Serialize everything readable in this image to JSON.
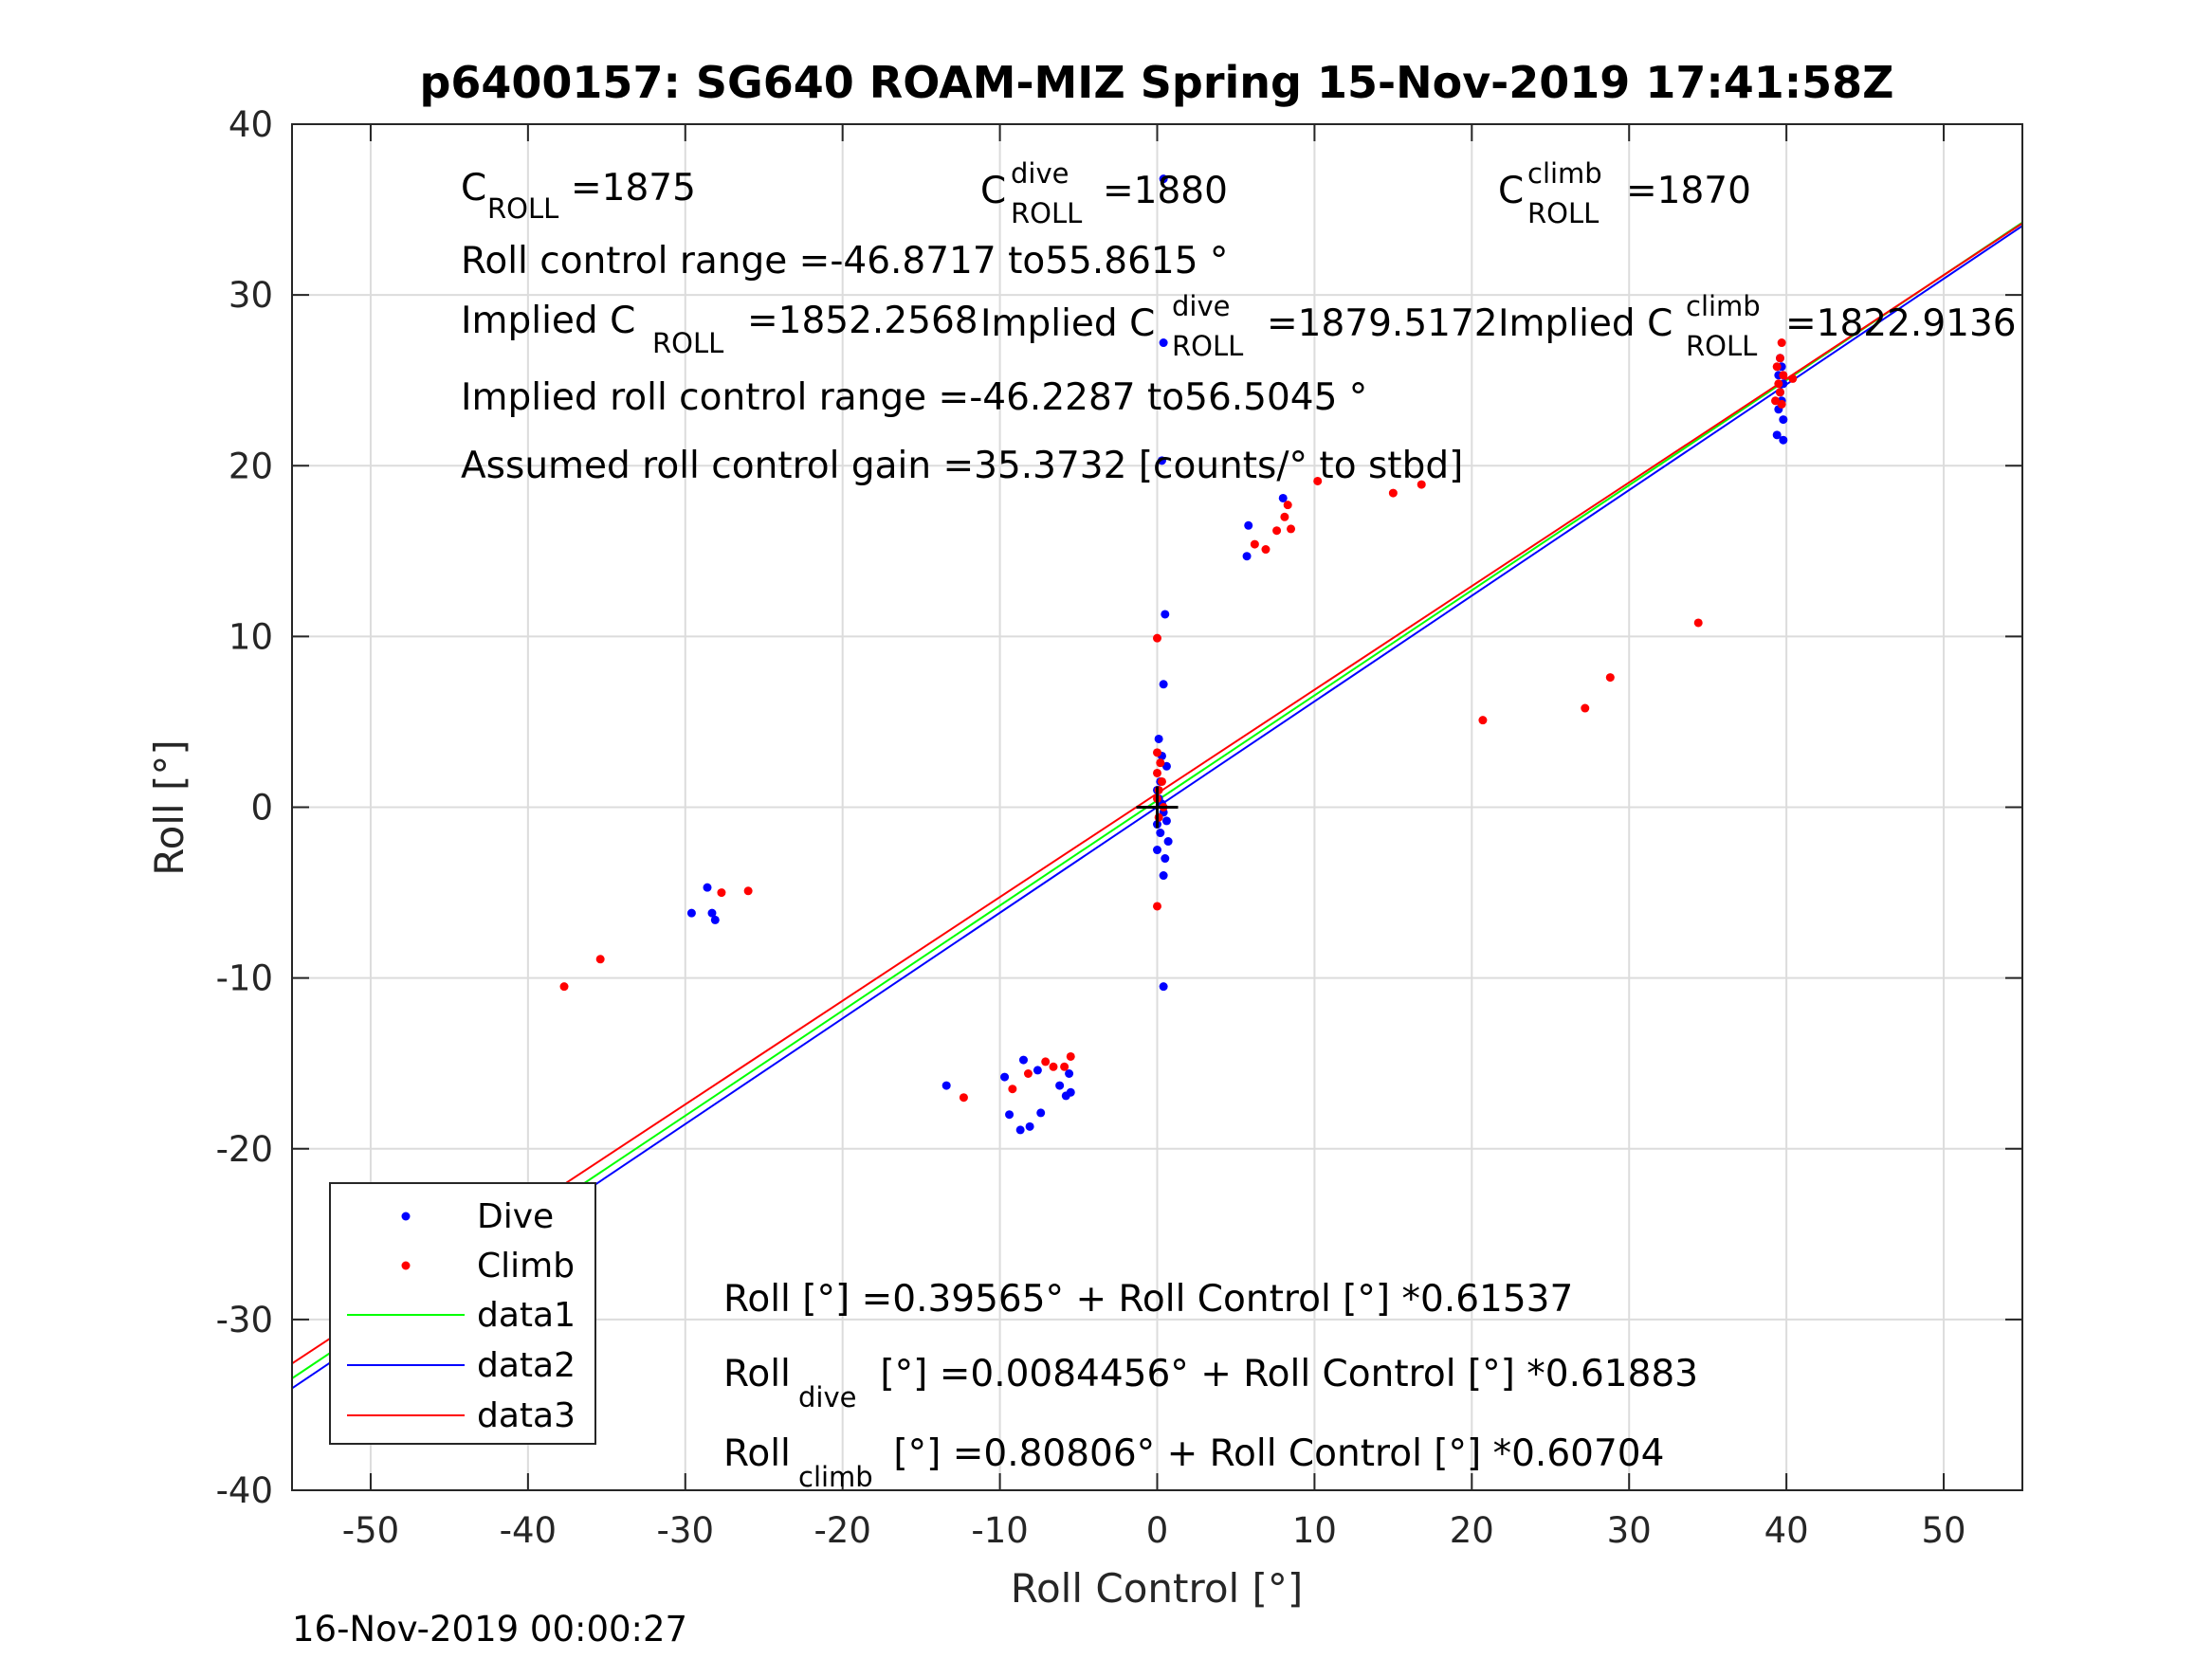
{
  "chart_data": {
    "type": "scatter",
    "title": "p6400157: SG640 ROAM-MIZ Spring 15-Nov-2019 17:41:58Z",
    "xlabel": "Roll Control [°]",
    "ylabel": "Roll [°]",
    "xlim": [
      -55,
      55
    ],
    "ylim": [
      -40,
      40
    ],
    "xticks": [
      -50,
      -40,
      -30,
      -20,
      -10,
      0,
      10,
      20,
      30,
      40,
      50
    ],
    "yticks": [
      -40,
      -30,
      -20,
      -10,
      0,
      10,
      20,
      30,
      40
    ],
    "grid": true,
    "legend_position": "bottom-left",
    "series": [
      {
        "name": "Dive",
        "kind": "points",
        "color": "#0000ff",
        "points": [
          [
            -39.6,
            -22.8
          ],
          [
            -39.8,
            -23.4
          ],
          [
            -39.4,
            -24.0
          ],
          [
            -39.7,
            -24.6
          ],
          [
            -39.5,
            -25.0
          ],
          [
            -39.9,
            -25.4
          ],
          [
            -39.3,
            -25.8
          ],
          [
            -39.6,
            -26.0
          ],
          [
            -39.8,
            -25.6
          ],
          [
            -39.4,
            -24.8
          ],
          [
            -29.6,
            -6.2
          ],
          [
            -28.6,
            -4.7
          ],
          [
            -28.3,
            -6.2
          ],
          [
            -28.1,
            -6.6
          ],
          [
            -13.4,
            -16.3
          ],
          [
            -9.7,
            -15.8
          ],
          [
            -9.4,
            -18.0
          ],
          [
            -8.7,
            -18.9
          ],
          [
            -8.5,
            -14.8
          ],
          [
            -8.1,
            -18.7
          ],
          [
            -7.6,
            -15.4
          ],
          [
            -7.4,
            -17.9
          ],
          [
            -6.2,
            -16.3
          ],
          [
            -5.8,
            -16.9
          ],
          [
            -5.6,
            -15.6
          ],
          [
            -5.5,
            -16.7
          ],
          [
            0.4,
            36.8
          ],
          [
            0.4,
            27.2
          ],
          [
            0.3,
            20.3
          ],
          [
            0.5,
            11.3
          ],
          [
            0.4,
            7.2
          ],
          [
            0.1,
            4.0
          ],
          [
            0.3,
            3.0
          ],
          [
            0.6,
            2.4
          ],
          [
            0.2,
            1.5
          ],
          [
            0.0,
            1.0
          ],
          [
            0.1,
            0.5
          ],
          [
            0.3,
            0.2
          ],
          [
            0.4,
            -0.3
          ],
          [
            0.6,
            -0.8
          ],
          [
            0.0,
            -1.0
          ],
          [
            0.2,
            -1.5
          ],
          [
            0.7,
            -2.0
          ],
          [
            0.0,
            -2.5
          ],
          [
            0.5,
            -3.0
          ],
          [
            0.4,
            -4.0
          ],
          [
            0.4,
            -10.5
          ],
          [
            5.7,
            14.7
          ],
          [
            5.8,
            16.5
          ],
          [
            8.0,
            18.1
          ],
          [
            39.6,
            26.3
          ],
          [
            39.7,
            25.8
          ],
          [
            39.5,
            25.3
          ],
          [
            39.8,
            24.8
          ],
          [
            39.6,
            24.3
          ],
          [
            39.7,
            23.8
          ],
          [
            39.5,
            23.3
          ],
          [
            39.8,
            22.7
          ],
          [
            39.4,
            21.8
          ],
          [
            39.8,
            21.5
          ]
        ]
      },
      {
        "name": "Climb",
        "kind": "points",
        "color": "#ff0000",
        "points": [
          [
            -40.3,
            -25.6
          ],
          [
            -40.0,
            -25.0
          ],
          [
            -39.8,
            -24.4
          ],
          [
            -39.5,
            -24.0
          ],
          [
            -39.9,
            -23.6
          ],
          [
            -39.4,
            -23.3
          ],
          [
            -40.2,
            -24.7
          ],
          [
            -39.7,
            -25.3
          ],
          [
            -39.6,
            -23.8
          ],
          [
            -37.7,
            -10.5
          ],
          [
            -35.4,
            -8.9
          ],
          [
            -27.7,
            -5.0
          ],
          [
            -26.0,
            -4.9
          ],
          [
            -12.3,
            -17.0
          ],
          [
            -9.2,
            -16.5
          ],
          [
            -8.2,
            -15.6
          ],
          [
            -7.1,
            -14.9
          ],
          [
            -6.6,
            -15.2
          ],
          [
            -5.9,
            -15.2
          ],
          [
            -5.5,
            -14.6
          ],
          [
            0.0,
            9.9
          ],
          [
            0.0,
            3.2
          ],
          [
            0.2,
            2.6
          ],
          [
            0.0,
            2.0
          ],
          [
            0.3,
            1.5
          ],
          [
            0.1,
            1.0
          ],
          [
            0.0,
            0.5
          ],
          [
            0.4,
            0.0
          ],
          [
            0.1,
            -0.6
          ],
          [
            0.0,
            -5.8
          ],
          [
            6.2,
            15.4
          ],
          [
            6.9,
            15.1
          ],
          [
            7.6,
            16.2
          ],
          [
            8.1,
            17.0
          ],
          [
            8.3,
            17.7
          ],
          [
            8.5,
            16.3
          ],
          [
            10.2,
            19.1
          ],
          [
            15.0,
            18.4
          ],
          [
            16.8,
            18.9
          ],
          [
            20.7,
            5.1
          ],
          [
            27.2,
            5.8
          ],
          [
            28.8,
            7.6
          ],
          [
            34.4,
            10.8
          ],
          [
            39.7,
            27.2
          ],
          [
            39.6,
            26.3
          ],
          [
            39.4,
            25.8
          ],
          [
            39.8,
            25.3
          ],
          [
            39.5,
            24.8
          ],
          [
            39.6,
            24.3
          ],
          [
            39.3,
            23.8
          ],
          [
            39.7,
            23.6
          ],
          [
            40.4,
            25.1
          ]
        ]
      },
      {
        "name": "data1",
        "kind": "line",
        "color": "#00ff00",
        "intercept": 0.39565,
        "slope": 0.61537,
        "x_range": [
          -55,
          55
        ]
      },
      {
        "name": "data2",
        "kind": "line",
        "color": "#0000ff",
        "intercept": 0.0084456,
        "slope": 0.61883,
        "x_range": [
          -55,
          55
        ]
      },
      {
        "name": "data3",
        "kind": "line",
        "color": "#ff0000",
        "intercept": 0.80806,
        "slope": 0.60704,
        "x_range": [
          -55,
          55
        ]
      }
    ],
    "origin_marker": {
      "x": 0,
      "y": 0,
      "symbol": "+"
    },
    "annotations": {
      "c_roll": {
        "main": "C",
        "sub": "ROLL",
        "value": "=1875"
      },
      "c_roll_dive": {
        "main": "C",
        "sup": "dive",
        "sub": "ROLL",
        "value": "=1880"
      },
      "c_roll_climb": {
        "main": "C",
        "sup": "climb",
        "sub": "ROLL",
        "value": "=1870"
      },
      "roll_range": "Roll control range =-46.8717 to55.8615 °",
      "implied_c_roll": {
        "main": "Implied C",
        "sub": "ROLL",
        "value": "=1852.2568"
      },
      "implied_c_roll_dive": {
        "main": "Implied C",
        "sup": "dive",
        "sub": "ROLL",
        "value": "=1879.5172"
      },
      "implied_c_roll_climb": {
        "main": "Implied C",
        "sup": "climb",
        "sub": "ROLL",
        "value": "=1822.9136"
      },
      "implied_range": "Implied roll control range =-46.2287 to56.5045 °",
      "gain": "Assumed roll control gain =35.3732 [counts/° to stbd]",
      "fit_all": {
        "main": "Roll [°] =0.39565° + Roll Control [°] *0.61537"
      },
      "fit_dive": {
        "main": "Roll",
        "sub": "dive",
        "rest": " [°] =0.0084456° + Roll Control [°] *0.61883"
      },
      "fit_climb": {
        "main": "Roll",
        "sub": "climb",
        "rest": " [°] =0.80806° + Roll Control [°] *0.60704"
      }
    },
    "footer": "16-Nov-2019 00:00:27"
  }
}
